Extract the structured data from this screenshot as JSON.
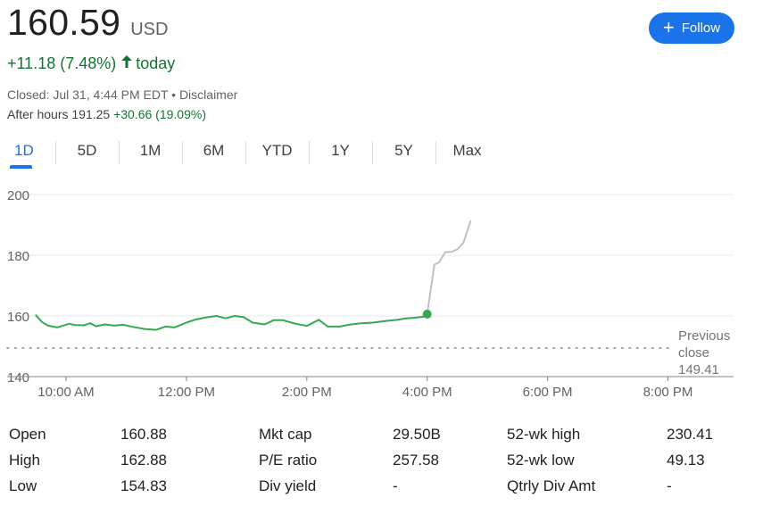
{
  "quote": {
    "price": "160.59",
    "currency": "USD",
    "follow_label": "Follow",
    "change": "+11.18 (7.48%)",
    "change_suffix": "today",
    "closed_line": "Closed: Jul 31, 4:44 PM EDT • Disclaimer",
    "after_hours_label": "After hours 191.25",
    "after_hours_change": "+30.66 (19.09%)",
    "up_color": "#137333",
    "accent_color": "#1a73e8"
  },
  "tabs": [
    "1D",
    "5D",
    "1M",
    "6M",
    "YTD",
    "1Y",
    "5Y",
    "Max"
  ],
  "active_tab": "1D",
  "chart_data": {
    "type": "line",
    "ylim": [
      140,
      200
    ],
    "yticks": [
      200,
      180,
      160,
      140
    ],
    "xticks": [
      "10:00 AM",
      "12:00 PM",
      "2:00 PM",
      "4:00 PM",
      "6:00 PM",
      "8:00 PM"
    ],
    "xtick_hours": [
      10,
      12,
      14,
      16,
      18,
      20
    ],
    "previous_close": {
      "label_lines": [
        "Previous",
        "close",
        "149.41"
      ],
      "value": 149.41
    },
    "grid": true,
    "series": [
      {
        "session": "regular",
        "color": "#34a853",
        "x": [
          9.5,
          9.6,
          9.7,
          9.85,
          9.95,
          10.05,
          10.15,
          10.3,
          10.4,
          10.5,
          10.65,
          10.8,
          10.95,
          11.1,
          11.3,
          11.5,
          11.65,
          11.8,
          12.0,
          12.15,
          12.3,
          12.5,
          12.65,
          12.8,
          12.95,
          13.1,
          13.3,
          13.45,
          13.6,
          13.8,
          14.0,
          14.2,
          14.35,
          14.55,
          14.7,
          14.9,
          15.1,
          15.3,
          15.5,
          15.65,
          15.8,
          15.95,
          16.0
        ],
        "y": [
          160.2,
          158.0,
          156.8,
          156.2,
          156.8,
          157.4,
          157.0,
          156.9,
          157.6,
          156.6,
          157.2,
          156.8,
          157.1,
          156.4,
          155.7,
          155.4,
          156.5,
          156.2,
          157.8,
          158.8,
          159.4,
          160.0,
          159.2,
          160.0,
          159.6,
          157.8,
          157.2,
          158.6,
          158.6,
          157.5,
          156.7,
          158.7,
          156.5,
          156.5,
          157.1,
          157.6,
          157.8,
          158.3,
          158.7,
          159.2,
          159.4,
          159.8,
          160.59
        ]
      },
      {
        "session": "after-hours",
        "color": "#bdc1c6",
        "x": [
          16.0,
          16.12,
          16.2,
          16.3,
          16.4,
          16.5,
          16.6,
          16.72
        ],
        "y": [
          160.59,
          176.9,
          177.7,
          181.0,
          181.1,
          181.9,
          184.1,
          191.25
        ]
      }
    ]
  },
  "stats": [
    [
      {
        "label": "Open",
        "value": "160.88"
      },
      {
        "label": "Mkt cap",
        "value": "29.50B"
      },
      {
        "label": "52-wk high",
        "value": "230.41"
      }
    ],
    [
      {
        "label": "High",
        "value": "162.88"
      },
      {
        "label": "P/E ratio",
        "value": "257.58"
      },
      {
        "label": "52-wk low",
        "value": "49.13"
      }
    ],
    [
      {
        "label": "Low",
        "value": "154.83"
      },
      {
        "label": "Div yield",
        "value": "-"
      },
      {
        "label": "Qtrly Div Amt",
        "value": "-"
      }
    ]
  ]
}
